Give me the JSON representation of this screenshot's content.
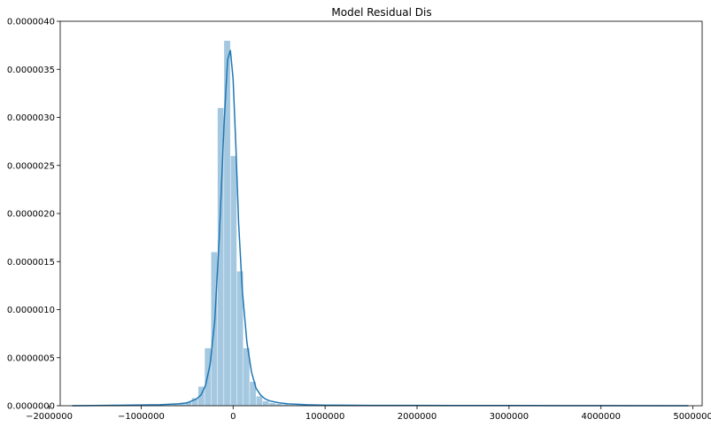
{
  "chart_data": {
    "type": "bar",
    "title": "Model Residual Dis",
    "xlabel": "",
    "ylabel": "",
    "xlim": [
      -1880000,
      5100000
    ],
    "ylim": [
      0,
      4e-06
    ],
    "grid": false,
    "legend": "none",
    "colors": {
      "bar_fill": "#a5c8e1",
      "kde_line": "#1f77b4",
      "axis": "#000000"
    },
    "x_ticks": [
      {
        "value": -2000000,
        "label": "−2000000"
      },
      {
        "value": -1000000,
        "label": "−1000000"
      },
      {
        "value": 0,
        "label": "0"
      },
      {
        "value": 1000000,
        "label": "1000000"
      },
      {
        "value": 2000000,
        "label": "2000000"
      },
      {
        "value": 3000000,
        "label": "3000000"
      },
      {
        "value": 4000000,
        "label": "4000000"
      },
      {
        "value": 5000000,
        "label": "5000000"
      }
    ],
    "y_ticks": [
      {
        "value": 0,
        "label": "0.0000000"
      },
      {
        "value": 5e-07,
        "label": "0.0000005"
      },
      {
        "value": 1e-06,
        "label": "0.0000010"
      },
      {
        "value": 1.5e-06,
        "label": "0.0000015"
      },
      {
        "value": 2e-06,
        "label": "0.0000020"
      },
      {
        "value": 2.5e-06,
        "label": "0.0000025"
      },
      {
        "value": 3e-06,
        "label": "0.0000030"
      },
      {
        "value": 3.5e-06,
        "label": "0.0000035"
      },
      {
        "value": 4e-06,
        "label": "0.0000040"
      }
    ],
    "histogram": {
      "bin_width": 70000,
      "x": [
        -1745000,
        -1675000,
        -1605000,
        -1535000,
        -1465000,
        -1395000,
        -1325000,
        -1255000,
        -1185000,
        -1115000,
        -1045000,
        -975000,
        -905000,
        -835000,
        -765000,
        -695000,
        -625000,
        -555000,
        -485000,
        -415000,
        -345000,
        -275000,
        -205000,
        -135000,
        -65000,
        5000,
        75000,
        145000,
        215000,
        285000,
        355000,
        425000,
        495000,
        565000,
        635000,
        705000,
        775000,
        845000,
        915000,
        985000,
        1055000,
        1125000,
        1195000,
        1265000,
        1335000,
        1405000,
        1475000,
        1545000,
        1615000,
        1685000,
        1755000,
        1825000,
        1895000,
        1965000,
        2035000,
        2105000,
        2175000,
        2245000,
        2315000,
        2385000,
        2455000,
        2525000,
        2595000,
        2665000,
        2735000,
        2805000,
        2875000,
        2945000,
        3015000,
        3085000,
        3155000,
        3225000,
        3295000,
        3365000,
        3435000,
        3505000,
        3575000,
        3645000,
        3715000,
        3785000,
        3855000,
        3925000,
        3995000,
        4065000,
        4135000,
        4205000,
        4275000,
        4345000,
        4415000,
        4485000,
        4555000,
        4625000,
        4695000,
        4765000,
        4835000,
        4905000
      ],
      "values": [
        0,
        0,
        0,
        0,
        0,
        0,
        0,
        0,
        0,
        0,
        0,
        0,
        0,
        5e-09,
        5e-09,
        1e-08,
        1.5e-08,
        2e-08,
        4e-08,
        8e-08,
        2e-07,
        6e-07,
        1.6e-06,
        3.1e-06,
        3.8e-06,
        2.6e-06,
        1.4e-06,
        6e-07,
        2.5e-07,
        1e-07,
        5e-08,
        3e-08,
        2e-08,
        1.5e-08,
        1e-08,
        1e-08,
        1e-08,
        5e-09,
        5e-09,
        5e-09,
        5e-09,
        3e-09,
        3e-09,
        3e-09,
        3e-09,
        2e-09,
        2e-09,
        2e-09,
        2e-09,
        2e-09,
        2e-09,
        2e-09,
        2e-09,
        2e-09,
        2e-09,
        2e-09,
        2e-09,
        2e-09,
        2e-09,
        2e-09,
        2e-09,
        1e-09,
        1e-09,
        1e-09,
        1e-09,
        1e-09,
        1e-09,
        1e-09,
        1e-09,
        1e-09,
        1e-09,
        1e-09,
        1e-09,
        1e-09,
        1e-09,
        1e-09,
        1e-09,
        1e-09,
        1e-09,
        1e-09,
        1e-09,
        1e-09,
        1e-09,
        1e-09,
        1e-09,
        1e-09,
        1e-09,
        1e-09,
        1e-09,
        1e-09,
        1e-09,
        1e-09,
        1e-09,
        1e-09,
        1e-09,
        1e-09
      ]
    },
    "kde": {
      "x": [
        -1750000,
        -1500000,
        -1250000,
        -1000000,
        -800000,
        -600000,
        -500000,
        -400000,
        -350000,
        -300000,
        -250000,
        -200000,
        -150000,
        -100000,
        -60000,
        -30000,
        0,
        30000,
        60000,
        100000,
        150000,
        200000,
        250000,
        300000,
        350000,
        400000,
        500000,
        600000,
        800000,
        1000000,
        1500000,
        2000000,
        3000000,
        4000000,
        4950000
      ],
      "y": [
        0,
        2e-09,
        5e-09,
        8e-09,
        1e-08,
        2e-08,
        3e-08,
        7e-08,
        1.1e-07,
        2.1e-07,
        4.3e-07,
        8.8e-07,
        1.75e-06,
        2.9e-06,
        3.6e-06,
        3.7e-06,
        3.4e-06,
        2.7e-06,
        1.9e-06,
        1.2e-06,
        6.6e-07,
        3.5e-07,
        1.8e-07,
        1.1e-07,
        7e-08,
        5e-08,
        3e-08,
        2e-08,
        1e-08,
        6e-09,
        4e-09,
        3e-09,
        2e-09,
        1e-09,
        0
      ]
    }
  }
}
